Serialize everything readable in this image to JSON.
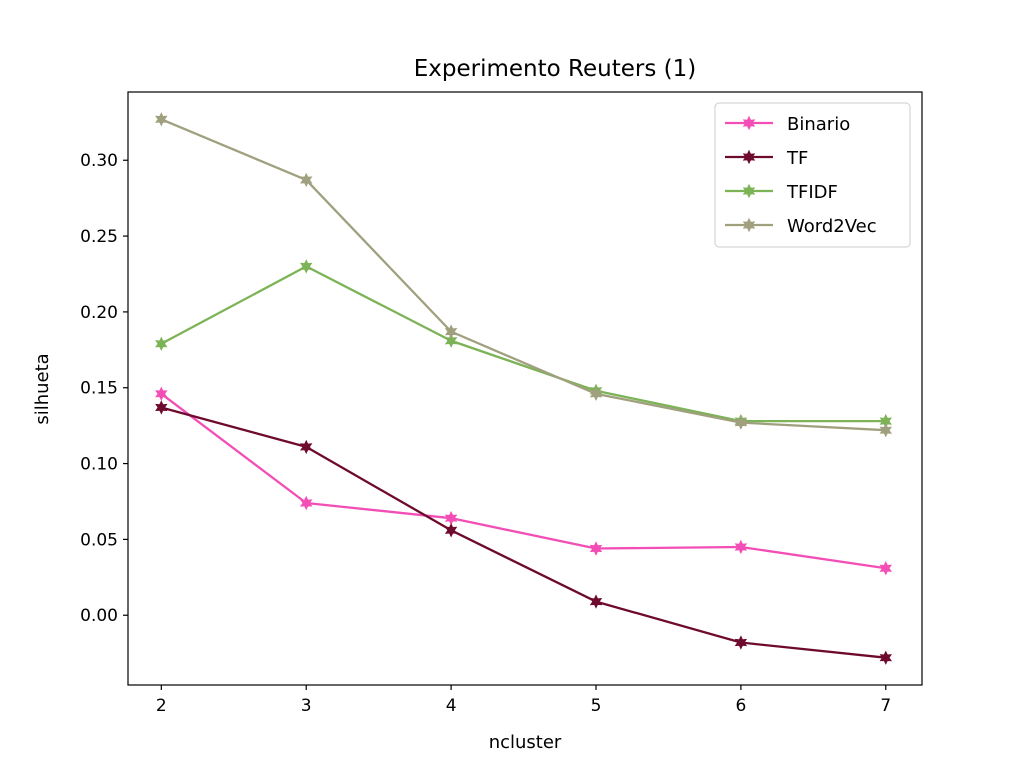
{
  "chart_data": {
    "type": "line",
    "title": "Experimento Reuters (1)",
    "xlabel": "ncluster",
    "ylabel": "silhueta",
    "x": [
      2,
      3,
      4,
      5,
      6,
      7
    ],
    "xlim": [
      1.77,
      7.25
    ],
    "ylim": [
      -0.046,
      0.345
    ],
    "xticks": [
      2,
      3,
      4,
      5,
      6,
      7
    ],
    "yticks": [
      0.0,
      0.05,
      0.1,
      0.15,
      0.2,
      0.25,
      0.3
    ],
    "ytick_labels": [
      "0.00",
      "0.05",
      "0.10",
      "0.15",
      "0.20",
      "0.25",
      "0.30"
    ],
    "grid": false,
    "legend_position": "top-right",
    "marker": "star",
    "series": [
      {
        "name": "Binario",
        "color": "#f24eb5",
        "values": [
          0.146,
          0.074,
          0.064,
          0.044,
          0.045,
          0.031
        ]
      },
      {
        "name": "TF",
        "color": "#6e0a2e",
        "values": [
          0.137,
          0.111,
          0.056,
          0.009,
          -0.018,
          -0.028
        ]
      },
      {
        "name": "TFIDF",
        "color": "#7cb356",
        "values": [
          0.179,
          0.23,
          0.181,
          0.148,
          0.128,
          0.128
        ]
      },
      {
        "name": "Word2Vec",
        "color": "#a0a07f",
        "values": [
          0.327,
          0.287,
          0.187,
          0.146,
          0.127,
          0.122
        ]
      }
    ]
  }
}
